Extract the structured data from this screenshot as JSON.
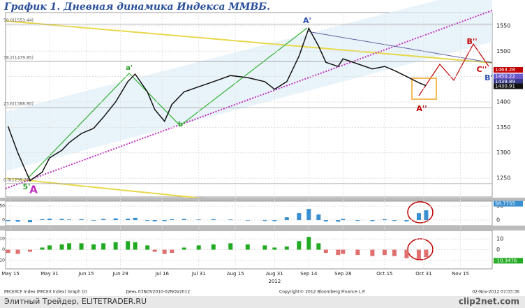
{
  "header": {
    "title": "График 1.   Дневная динамика Индекса ММВБ."
  },
  "chart_data": [
    {
      "type": "line",
      "color": "#111111",
      "x": [
        "2012-05-14",
        "2012-05-18",
        "2012-05-23",
        "2012-05-28",
        "2012-05-31",
        "2012-06-05",
        "2012-06-08",
        "2012-06-13",
        "2012-06-18",
        "2012-06-22",
        "2012-06-27",
        "2012-07-02",
        "2012-07-05",
        "2012-07-10",
        "2012-07-13",
        "2012-07-17",
        "2012-07-20",
        "2012-07-25",
        "2012-07-31",
        "2012-08-06",
        "2012-08-13",
        "2012-08-20",
        "2012-08-27",
        "2012-08-31",
        "2012-09-05",
        "2012-09-10",
        "2012-09-14",
        "2012-09-18",
        "2012-09-21",
        "2012-09-26",
        "2012-09-28",
        "2012-10-04",
        "2012-10-10",
        "2012-10-15",
        "2012-10-19",
        "2012-10-24",
        "2012-10-29",
        "2012-11-01"
      ],
      "values": [
        1352,
        1300,
        1245,
        1262,
        1290,
        1305,
        1320,
        1338,
        1348,
        1370,
        1400,
        1440,
        1455,
        1420,
        1385,
        1362,
        1395,
        1420,
        1430,
        1440,
        1452,
        1448,
        1440,
        1425,
        1440,
        1490,
        1545,
        1510,
        1478,
        1470,
        1485,
        1475,
        1465,
        1470,
        1462,
        1450,
        1438,
        1432
      ],
      "xlim": [
        "2012-05-13",
        "2012-11-28"
      ],
      "xticks": [
        {
          "value": "2012-05-15",
          "label": "May 15"
        },
        {
          "value": "2012-05-31",
          "label": "May 31"
        },
        {
          "value": "2012-06-15",
          "label": "Jun 15"
        },
        {
          "value": "2012-06-29",
          "label": "Jun 29"
        },
        {
          "value": "2012-07-16",
          "label": "Jul 16"
        },
        {
          "value": "2012-07-31",
          "label": "Jul 31"
        },
        {
          "value": "2012-08-15",
          "label": "Aug 15"
        },
        {
          "value": "2012-08-31",
          "label": "Aug 31"
        },
        {
          "value": "2012-09-14",
          "label": "Sep 14"
        },
        {
          "value": "2012-09-28",
          "label": "Sep 28"
        },
        {
          "value": "2012-10-15",
          "label": "Oct 15"
        },
        {
          "value": "2012-10-31",
          "label": "Oct 31"
        },
        {
          "value": "2012-11-15",
          "label": "Nov 15"
        }
      ],
      "x_label": "2012",
      "ylim": [
        1213,
        1576
      ],
      "yticks": [
        1250,
        1300,
        1350,
        1400,
        1450,
        1500,
        1550
      ],
      "grid": true,
      "levels": [
        {
          "value": 1553.44,
          "label": "50.0(1553.44)"
        },
        {
          "value": 1479.85,
          "label": "38.2(1479.85)"
        },
        {
          "value": 1388.8,
          "label": "23.6(1388.80)"
        },
        {
          "value": 1239.25,
          "label": "0.0(1239.25)"
        }
      ],
      "price_labels": [
        {
          "value": 1463.28,
          "color": "#c00000"
        },
        {
          "value": 1450.22,
          "color": "#6a5acd"
        },
        {
          "value": 1439.89,
          "color": "#3a3a8a"
        },
        {
          "value": 1430.91,
          "color": "#111111"
        }
      ],
      "annotations": [
        "A'",
        "a'",
        "b'",
        "5'",
        "A",
        "A''",
        "B''",
        "C''",
        "B'"
      ]
    },
    {
      "type": "bar",
      "color": "#3a8fd0",
      "x": [
        "2012-05-14",
        "2012-05-18",
        "2012-05-23",
        "2012-05-28",
        "2012-05-31",
        "2012-06-05",
        "2012-06-08",
        "2012-06-13",
        "2012-06-18",
        "2012-06-22",
        "2012-06-27",
        "2012-07-02",
        "2012-07-05",
        "2012-07-10",
        "2012-07-13",
        "2012-07-17",
        "2012-07-20",
        "2012-07-25",
        "2012-07-31",
        "2012-08-06",
        "2012-08-13",
        "2012-08-20",
        "2012-08-27",
        "2012-08-31",
        "2012-09-05",
        "2012-09-10",
        "2012-09-14",
        "2012-09-18",
        "2012-09-21",
        "2012-09-26",
        "2012-09-28",
        "2012-10-04",
        "2012-10-10",
        "2012-10-15",
        "2012-10-19",
        "2012-10-24",
        "2012-10-29",
        "2012-11-01"
      ],
      "values": [
        -4,
        -6,
        -8,
        3,
        5,
        4,
        2,
        3,
        -2,
        4,
        6,
        5,
        8,
        -3,
        -5,
        -4,
        3,
        4,
        2,
        3,
        2,
        -2,
        -3,
        -4,
        10,
        25,
        40,
        20,
        -5,
        -6,
        4,
        -3,
        -4,
        3,
        -3,
        -5,
        25,
        35
      ],
      "xlim": [
        "2012-05-13",
        "2012-11-28"
      ],
      "ylim": [
        -20,
        68
      ],
      "yticks": [
        0,
        50
      ],
      "last_label": 58.7755
    },
    {
      "type": "bar",
      "color": "#22aa22",
      "neg_color": "#e07070",
      "x": [
        "2012-05-14",
        "2012-05-18",
        "2012-05-23",
        "2012-05-28",
        "2012-05-31",
        "2012-06-05",
        "2012-06-08",
        "2012-06-13",
        "2012-06-18",
        "2012-06-22",
        "2012-06-27",
        "2012-07-02",
        "2012-07-05",
        "2012-07-10",
        "2012-07-13",
        "2012-07-17",
        "2012-07-20",
        "2012-07-25",
        "2012-07-31",
        "2012-08-06",
        "2012-08-13",
        "2012-08-20",
        "2012-08-27",
        "2012-08-31",
        "2012-09-05",
        "2012-09-10",
        "2012-09-14",
        "2012-09-18",
        "2012-09-21",
        "2012-09-26",
        "2012-09-28",
        "2012-10-04",
        "2012-10-10",
        "2012-10-15",
        "2012-10-19",
        "2012-10-24",
        "2012-10-29",
        "2012-11-01"
      ],
      "values": [
        -3,
        -4,
        -2,
        2,
        4,
        5,
        6,
        6,
        5,
        6,
        7,
        8,
        7,
        4,
        -2,
        -4,
        -3,
        2,
        4,
        5,
        6,
        5,
        4,
        2,
        3,
        8,
        12,
        6,
        -3,
        -5,
        -4,
        -5,
        -6,
        -5,
        -6,
        -8,
        -9,
        -7
      ],
      "xlim": [
        "2012-05-13",
        "2012-11-28"
      ],
      "ylim": [
        -18,
        18
      ],
      "yticks": [
        -10,
        0,
        10
      ],
      "last_label": -10.3476
    }
  ],
  "info": {
    "index": "MICEXCF Index (MICEX Index) Graph 10",
    "period": "День 03NOV2010-02NOV2012",
    "copyright": "Copyright© 2012 Bloomberg Finance L.P.",
    "stamp": "02-Nov-2012 07:03:36"
  },
  "footer": {
    "site": "Элитный Трейдер, ELITETRADER.RU",
    "brand": "clip2net.com"
  }
}
